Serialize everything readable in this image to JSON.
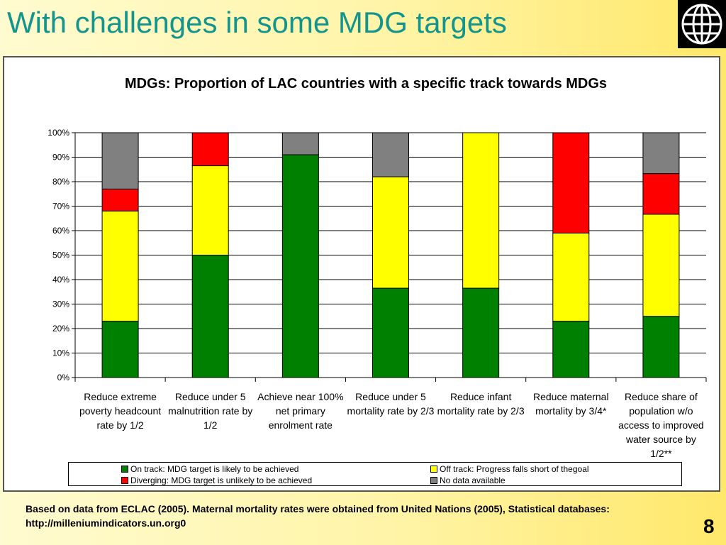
{
  "slide": {
    "title": "With challenges in some MDG targets",
    "footnote": "Based on data from ECLAC (2005).  Maternal mortality rates were obtained from United Nations (2005), Statistical databases: http://milleniumindicators.un.org0",
    "page_number": "8",
    "logo_icon": "world-bank-globe-icon"
  },
  "chart_data": {
    "type": "bar",
    "stacked": true,
    "title": "MDGs: Proportion of  LAC countries with a specific track towards MDGs",
    "xlabel": "",
    "ylabel": "",
    "ylim": [
      0,
      100
    ],
    "yticks": [
      "0%",
      "10%",
      "20%",
      "30%",
      "40%",
      "50%",
      "60%",
      "70%",
      "80%",
      "90%",
      "100%"
    ],
    "grid": true,
    "legend_position": "bottom",
    "categories": [
      "Reduce extreme poverty headcount rate by 1/2",
      "Reduce under 5 malnutrition  rate by 1/2",
      "Achieve near 100% net primary enrolment rate",
      "Reduce under 5 mortality rate by 2/3",
      "Reduce infant mortality  rate by 2/3",
      "Reduce maternal mortality by 3/4*",
      "Reduce share of population w/o access to improved water source by 1/2**"
    ],
    "series": [
      {
        "name": "On track: MDG target is likely to be achieved",
        "color": "#008000",
        "values": [
          23,
          50,
          91,
          36.5,
          36.5,
          23,
          25
        ]
      },
      {
        "name": "Off track: Progress falls short of thegoal",
        "color": "#ffff00",
        "values": [
          45,
          36.5,
          0,
          45.5,
          63.5,
          36,
          41.7
        ]
      },
      {
        "name": "Diverging: MDG target is unlikely to be achieved",
        "color": "#ff0000",
        "values": [
          9,
          13.5,
          0,
          0,
          0,
          41,
          16.6
        ]
      },
      {
        "name": "No data available",
        "color": "#808080",
        "values": [
          23,
          0,
          9,
          18,
          0,
          0,
          16.7
        ]
      }
    ]
  }
}
